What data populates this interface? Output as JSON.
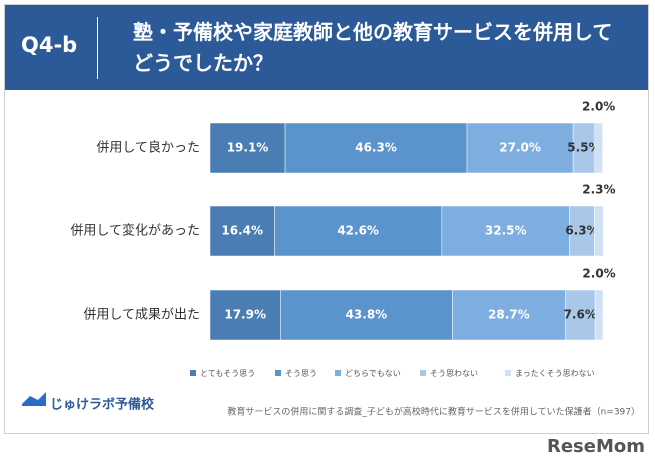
{
  "header": {
    "tag": "Q4-b"
  },
  "chart_data": {
    "type": "stacked-bar-horizontal",
    "title": "塾・予備校や家庭教師と他の教育サービスを併用してどうでしたか？",
    "categories": [
      "併用して良かった",
      "併用して変化があった",
      "併用して成果が出た"
    ],
    "series": [
      {
        "name": "とてもそう思う",
        "color": "#4a7db3",
        "values": [
          19.1,
          16.4,
          17.9
        ],
        "value_labels": [
          "19.1%",
          "16.4%",
          "17.9%"
        ]
      },
      {
        "name": "そう思う",
        "color": "#5b93cd",
        "values": [
          46.3,
          42.6,
          43.8
        ],
        "value_labels": [
          "46.3%",
          "42.6%",
          "43.8%"
        ]
      },
      {
        "name": "どちらでもない",
        "color": "#7eaee0",
        "values": [
          27.0,
          32.5,
          28.7
        ],
        "value_labels": [
          "27.0%",
          "32.5%",
          "28.7%"
        ]
      },
      {
        "name": "そう思わない",
        "color": "#a8c7e9",
        "values": [
          5.5,
          6.3,
          7.6
        ],
        "value_labels": [
          "5.5%",
          "6.3%",
          "7.6%"
        ]
      },
      {
        "name": "まったくそう思わない",
        "color": "#d0e1f4",
        "values": [
          2.0,
          2.3,
          2.0
        ],
        "value_labels": [
          "2.0%",
          "2.3%",
          "2.0%"
        ]
      }
    ]
  },
  "footer": {
    "logo": "じゅけラボ予備校",
    "source": "教育サービスの併用に関する調査_子どもが高校時代に教育サービスを併用していた保護者（n=397）"
  },
  "watermark": "ReseMom"
}
